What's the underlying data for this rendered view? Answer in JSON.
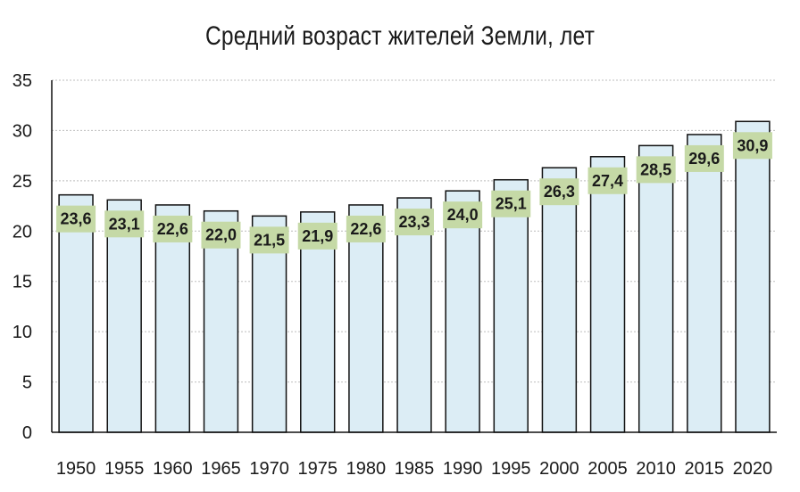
{
  "title": "Средний возраст жителей Земли, лет",
  "chart_data": {
    "type": "bar",
    "title": "Средний возраст жителей Земли, лет",
    "xlabel": "",
    "ylabel": "",
    "categories": [
      "1950",
      "1955",
      "1960",
      "1965",
      "1970",
      "1975",
      "1980",
      "1985",
      "1990",
      "1995",
      "2000",
      "2005",
      "2010",
      "2015",
      "2020"
    ],
    "values": [
      23.6,
      23.1,
      22.6,
      22.0,
      21.5,
      21.9,
      22.6,
      23.3,
      24.0,
      25.1,
      26.3,
      27.4,
      28.5,
      29.6,
      30.9
    ],
    "value_labels": [
      "23,6",
      "23,1",
      "22,6",
      "22,0",
      "21,5",
      "21,9",
      "22,6",
      "23,3",
      "24,0",
      "25,1",
      "26,3",
      "27,4",
      "28,5",
      "29,6",
      "30,9"
    ],
    "ylim": [
      0,
      35
    ],
    "yticks": [
      0,
      5,
      10,
      15,
      20,
      25,
      30,
      35
    ],
    "grid": "horizontal dotted",
    "legend": "none",
    "bar_color": "#dcedf5",
    "bar_edge_color": "#111111",
    "label_box_color": "#c5d9a6"
  }
}
